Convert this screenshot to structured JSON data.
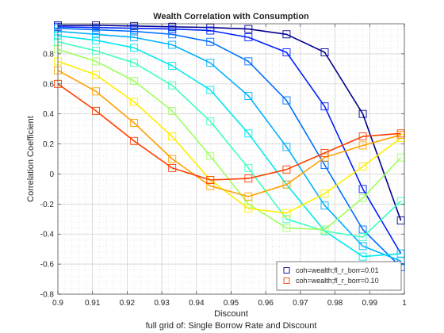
{
  "chart_data": {
    "type": "line",
    "title": "Wealth Correlation with Consumption",
    "xlabel": "Discount",
    "ylabel": "Correlation Coefficient",
    "caption": "full grid of: Single Borrow Rate and Discount",
    "xlim": [
      0.9,
      1.0
    ],
    "ylim": [
      -0.8,
      1.0
    ],
    "xticks": [
      "0.9",
      "0.91",
      "0.92",
      "0.93",
      "0.94",
      "0.95",
      "0.96",
      "0.97",
      "0.98",
      "0.99",
      "1"
    ],
    "yticks": [
      "-0.8",
      "-0.6",
      "-0.4",
      "-0.2",
      "0",
      "0.2",
      "0.4",
      "0.6",
      "0.8"
    ],
    "grid": true,
    "minor_grid": true,
    "legend_position": "bottom-right",
    "x": [
      0.9,
      0.911,
      0.922,
      0.933,
      0.944,
      0.955,
      0.966,
      0.977,
      0.988,
      0.999
    ],
    "series": [
      {
        "name": "coh=wealth;fl_r_borr=0.01",
        "color": "#00008f",
        "legend": true,
        "values": [
          0.99,
          0.99,
          0.985,
          0.98,
          0.975,
          0.965,
          0.93,
          0.81,
          0.4,
          -0.31
        ]
      },
      {
        "color": "#0020ff",
        "legend": false,
        "values": [
          0.98,
          0.975,
          0.97,
          0.965,
          0.955,
          0.91,
          0.81,
          0.45,
          -0.1,
          -0.53
        ]
      },
      {
        "color": "#0070ff",
        "legend": false,
        "values": [
          0.97,
          0.96,
          0.95,
          0.93,
          0.88,
          0.75,
          0.49,
          0.06,
          -0.37,
          -0.62
        ]
      },
      {
        "color": "#00b0ff",
        "legend": false,
        "values": [
          0.95,
          0.93,
          0.91,
          0.86,
          0.74,
          0.52,
          0.18,
          -0.21,
          -0.48,
          -0.58
        ]
      },
      {
        "color": "#00e8f0",
        "legend": false,
        "values": [
          0.92,
          0.89,
          0.84,
          0.72,
          0.56,
          0.27,
          -0.07,
          -0.38,
          -0.55,
          -0.53
        ]
      },
      {
        "color": "#40ffc0",
        "legend": false,
        "values": [
          0.88,
          0.82,
          0.74,
          0.59,
          0.35,
          0.04,
          -0.3,
          -0.38,
          -0.42,
          -0.18
        ]
      },
      {
        "color": "#a0ff60",
        "legend": false,
        "values": [
          0.83,
          0.75,
          0.62,
          0.42,
          0.12,
          -0.2,
          -0.36,
          -0.37,
          -0.16,
          0.11
        ]
      },
      {
        "color": "#ffee00",
        "legend": false,
        "values": [
          0.75,
          0.66,
          0.48,
          0.25,
          -0.04,
          -0.23,
          -0.26,
          -0.13,
          0.05,
          0.24
        ]
      },
      {
        "color": "#ffa000",
        "legend": false,
        "values": [
          0.69,
          0.55,
          0.34,
          0.1,
          -0.08,
          -0.15,
          -0.07,
          0.11,
          0.19,
          0.26
        ]
      },
      {
        "name": "coh=wealth;fl_r_borr=0.10",
        "color": "#ff4000",
        "legend": true,
        "values": [
          0.6,
          0.42,
          0.22,
          0.04,
          -0.04,
          -0.03,
          0.03,
          0.14,
          0.25,
          0.27
        ]
      }
    ]
  }
}
